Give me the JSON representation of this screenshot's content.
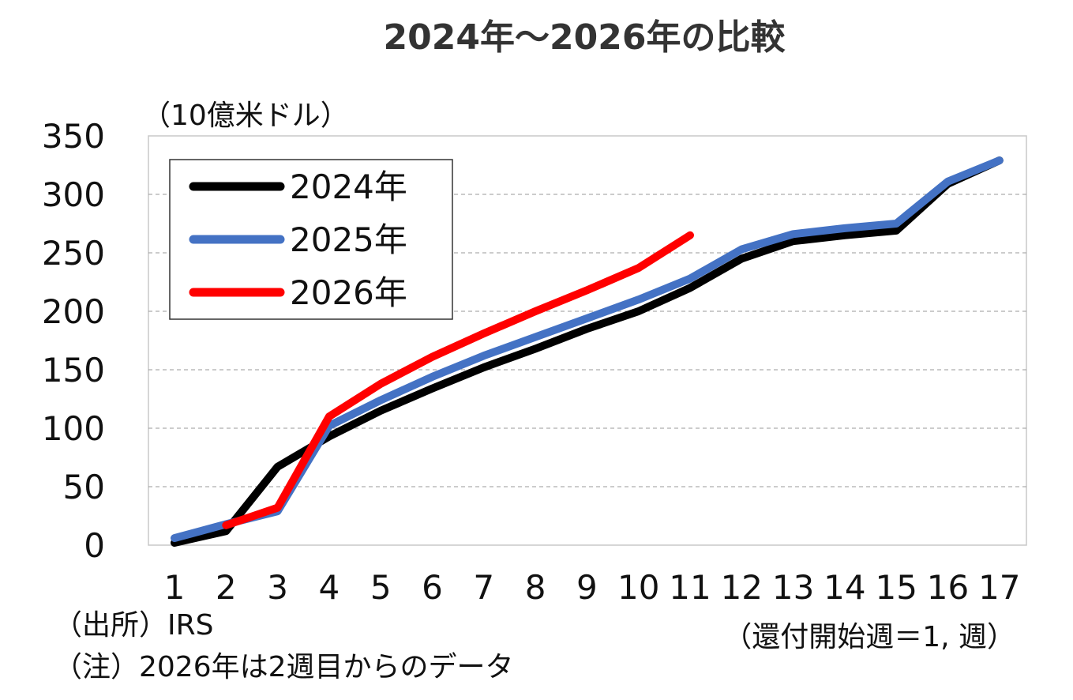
{
  "chart_data": {
    "type": "line",
    "title": "2024年～2026年の比較",
    "ylabel": "（10億米ドル）",
    "xlabel": "（還付開始週＝1, 週）",
    "categories": [
      "1",
      "2",
      "3",
      "4",
      "5",
      "6",
      "7",
      "8",
      "9",
      "10",
      "11",
      "12",
      "13",
      "14",
      "15",
      "16",
      "17"
    ],
    "ylim": [
      0,
      350
    ],
    "yticks": [
      0,
      50,
      100,
      150,
      200,
      250,
      300,
      350
    ],
    "grid": true,
    "legend_position": "top-left",
    "series": [
      {
        "name": "2024年",
        "color": "#000000",
        "values": [
          2,
          12,
          67,
          93,
          115,
          134,
          152,
          168,
          185,
          200,
          220,
          245,
          260,
          265,
          269,
          309,
          329
        ]
      },
      {
        "name": "2025年",
        "color": "#4472C4",
        "values": [
          6,
          18,
          29,
          102,
          124,
          144,
          162,
          178,
          194,
          210,
          228,
          253,
          266,
          271,
          275,
          311,
          329
        ]
      },
      {
        "name": "2026年",
        "color": "#FF0000",
        "values": [
          null,
          17,
          32,
          110,
          138,
          161,
          181,
          200,
          218,
          237,
          265,
          null,
          null,
          null,
          null,
          null,
          null
        ]
      }
    ]
  },
  "notes": {
    "source": "（出所）IRS",
    "note": "（注）2026年は2週目からのデータ"
  }
}
